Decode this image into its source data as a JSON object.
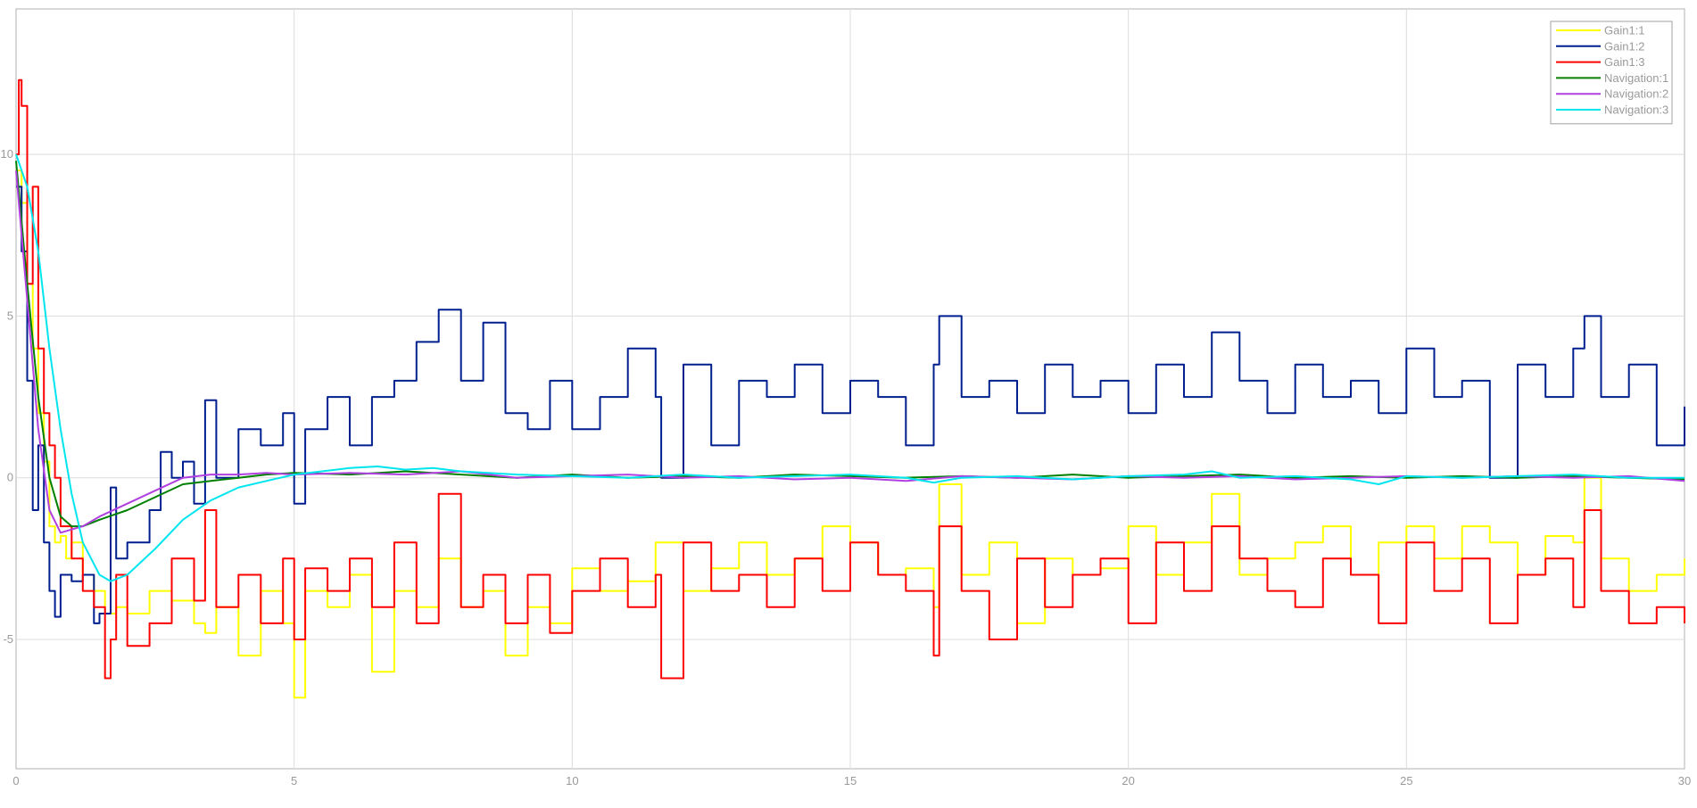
{
  "chart_data": {
    "type": "line",
    "title": "",
    "xlabel": "",
    "ylabel": "",
    "xlim": [
      0,
      30
    ],
    "ylim": [
      -9,
      14.5
    ],
    "grid": true,
    "legend_placement": "top-right",
    "x_ticks": [
      0,
      5,
      10,
      15,
      20,
      25,
      30
    ],
    "y_ticks": [
      -5,
      0,
      5,
      10
    ],
    "x_tick_labels": [
      "0",
      "5",
      "10",
      "15",
      "20",
      "25",
      "30"
    ],
    "y_tick_labels": [
      "-5",
      "0",
      "5",
      "10"
    ],
    "series": [
      {
        "name": "Gain1:1",
        "color": "#ffff00",
        "step": true,
        "x": [
          0,
          0.1,
          0.2,
          0.3,
          0.4,
          0.5,
          0.6,
          0.7,
          0.8,
          0.9,
          1.0,
          1.2,
          1.4,
          1.6,
          1.8,
          2.0,
          2.4,
          2.8,
          3.2,
          3.4,
          3.6,
          4.0,
          4.4,
          4.8,
          5.0,
          5.2,
          5.6,
          6.0,
          6.4,
          6.8,
          7.2,
          7.6,
          8.0,
          8.4,
          8.8,
          9.2,
          9.6,
          10.0,
          10.5,
          11.0,
          11.5,
          12.0,
          12.5,
          13.0,
          13.5,
          14.0,
          14.5,
          15.0,
          15.5,
          16.0,
          16.5,
          16.6,
          17.0,
          17.5,
          18.0,
          18.5,
          19.0,
          19.5,
          20.0,
          20.5,
          21.0,
          21.5,
          22.0,
          22.5,
          23.0,
          23.5,
          24.0,
          24.5,
          25.0,
          25.5,
          26.0,
          26.5,
          27.0,
          27.5,
          28.0,
          28.2,
          28.5,
          29.0,
          29.5,
          30.0
        ],
        "y": [
          9.5,
          8.5,
          6.0,
          4.0,
          2.0,
          0.5,
          -1.5,
          -2.0,
          -1.8,
          -2.5,
          -2.0,
          -3.0,
          -3.5,
          -4.2,
          -4.0,
          -4.2,
          -3.5,
          -3.8,
          -4.5,
          -4.8,
          -4.0,
          -5.5,
          -3.5,
          -4.5,
          -6.8,
          -3.5,
          -4.0,
          -3.0,
          -6.0,
          -3.5,
          -4.0,
          -2.5,
          -4.0,
          -3.5,
          -5.5,
          -4.0,
          -4.5,
          -2.8,
          -3.5,
          -3.2,
          -2.0,
          -3.5,
          -2.8,
          -2.0,
          -3.0,
          -2.5,
          -1.5,
          -2.0,
          -3.0,
          -2.8,
          -4.0,
          -0.2,
          -3.0,
          -2.0,
          -4.5,
          -2.5,
          -3.0,
          -2.8,
          -1.5,
          -3.0,
          -2.0,
          -0.5,
          -3.0,
          -2.5,
          -2.0,
          -1.5,
          -3.0,
          -2.0,
          -1.5,
          -2.5,
          -1.5,
          -2.0,
          -3.0,
          -1.8,
          -2.0,
          0.0,
          -2.5,
          -3.5,
          -3.0,
          -2.5
        ]
      },
      {
        "name": "Gain1:2",
        "color": "#001f8f",
        "step": true,
        "x": [
          0,
          0.1,
          0.2,
          0.3,
          0.4,
          0.5,
          0.6,
          0.7,
          0.8,
          1.0,
          1.2,
          1.4,
          1.5,
          1.7,
          1.8,
          2.0,
          2.4,
          2.6,
          2.8,
          3.0,
          3.2,
          3.4,
          3.6,
          4.0,
          4.4,
          4.8,
          5.0,
          5.2,
          5.6,
          6.0,
          6.4,
          6.8,
          7.2,
          7.6,
          8.0,
          8.4,
          8.8,
          9.2,
          9.6,
          10.0,
          10.5,
          11.0,
          11.5,
          11.6,
          12.0,
          12.5,
          13.0,
          13.5,
          14.0,
          14.5,
          15.0,
          15.5,
          16.0,
          16.5,
          16.6,
          17.0,
          17.5,
          18.0,
          18.5,
          19.0,
          19.5,
          20.0,
          20.5,
          21.0,
          21.5,
          22.0,
          22.5,
          23.0,
          23.5,
          24.0,
          24.5,
          25.0,
          25.5,
          26.0,
          26.5,
          27.0,
          27.5,
          28.0,
          28.2,
          28.5,
          29.0,
          29.5,
          30.0
        ],
        "y": [
          9.0,
          7.0,
          3.0,
          -1.0,
          1.0,
          -2.0,
          -3.5,
          -4.3,
          -3.0,
          -3.2,
          -3.0,
          -4.5,
          -4.2,
          -0.3,
          -2.5,
          -2.0,
          -1.0,
          0.8,
          0.0,
          0.5,
          -0.8,
          2.4,
          0.0,
          1.5,
          1.0,
          2.0,
          -0.8,
          1.5,
          2.5,
          1.0,
          2.5,
          3.0,
          4.2,
          5.2,
          3.0,
          4.8,
          2.0,
          1.5,
          3.0,
          1.5,
          2.5,
          4.0,
          2.5,
          0.0,
          3.5,
          1.0,
          3.0,
          2.5,
          3.5,
          2.0,
          3.0,
          2.5,
          1.0,
          3.5,
          5.0,
          2.5,
          3.0,
          2.0,
          3.5,
          2.5,
          3.0,
          2.0,
          3.5,
          2.5,
          4.5,
          3.0,
          2.0,
          3.5,
          2.5,
          3.0,
          2.0,
          4.0,
          2.5,
          3.0,
          0.0,
          3.5,
          2.5,
          4.0,
          5.0,
          2.5,
          3.5,
          1.0,
          2.2
        ]
      },
      {
        "name": "Gain1:3",
        "color": "#ff0000",
        "step": true,
        "x": [
          0,
          0.05,
          0.1,
          0.2,
          0.3,
          0.4,
          0.5,
          0.6,
          0.7,
          0.8,
          1.0,
          1.2,
          1.4,
          1.6,
          1.7,
          1.8,
          2.0,
          2.4,
          2.8,
          3.2,
          3.4,
          3.6,
          4.0,
          4.4,
          4.8,
          5.0,
          5.2,
          5.6,
          6.0,
          6.4,
          6.8,
          7.2,
          7.6,
          8.0,
          8.4,
          8.8,
          9.2,
          9.6,
          10.0,
          10.5,
          11.0,
          11.5,
          11.6,
          12.0,
          12.5,
          13.0,
          13.5,
          14.0,
          14.5,
          15.0,
          15.5,
          16.0,
          16.5,
          16.6,
          17.0,
          17.5,
          18.0,
          18.5,
          19.0,
          19.5,
          20.0,
          20.5,
          21.0,
          21.5,
          22.0,
          22.5,
          23.0,
          23.5,
          24.0,
          24.5,
          25.0,
          25.5,
          26.0,
          26.5,
          27.0,
          27.5,
          28.0,
          28.2,
          28.5,
          29.0,
          29.5,
          30.0
        ],
        "y": [
          10.0,
          12.3,
          11.5,
          6.0,
          9.0,
          4.0,
          2.0,
          1.0,
          0.0,
          -1.5,
          -2.5,
          -3.5,
          -4.0,
          -6.2,
          -5.0,
          -3.0,
          -5.2,
          -4.5,
          -2.5,
          -3.8,
          -1.0,
          -4.0,
          -3.0,
          -4.5,
          -2.5,
          -5.0,
          -2.8,
          -3.5,
          -2.5,
          -4.0,
          -2.0,
          -4.5,
          -0.5,
          -4.0,
          -3.0,
          -4.5,
          -3.0,
          -4.8,
          -3.5,
          -2.5,
          -4.0,
          -3.0,
          -6.2,
          -2.0,
          -3.5,
          -3.0,
          -4.0,
          -2.5,
          -3.5,
          -2.0,
          -3.0,
          -3.5,
          -5.5,
          -1.5,
          -3.5,
          -5.0,
          -2.5,
          -4.0,
          -3.0,
          -2.5,
          -4.5,
          -2.0,
          -3.5,
          -1.5,
          -2.5,
          -3.5,
          -4.0,
          -2.5,
          -3.0,
          -4.5,
          -2.0,
          -3.5,
          -2.5,
          -4.5,
          -3.0,
          -2.5,
          -4.0,
          -1.0,
          -3.5,
          -4.5,
          -4.0,
          -4.5
        ]
      },
      {
        "name": "Navigation:1",
        "color": "#008000",
        "step": false,
        "x": [
          0,
          0.2,
          0.4,
          0.6,
          0.8,
          1.0,
          1.2,
          1.5,
          2.0,
          2.5,
          3.0,
          3.5,
          4.0,
          4.5,
          5.0,
          6.0,
          7.0,
          8.0,
          9.0,
          10.0,
          11.0,
          12.0,
          13.0,
          14.0,
          15.0,
          16.0,
          17.0,
          18.0,
          19.0,
          20.0,
          21.0,
          22.0,
          23.0,
          24.0,
          25.0,
          26.0,
          27.0,
          28.0,
          29.0,
          30.0
        ],
        "y": [
          9.8,
          6.0,
          2.5,
          0.0,
          -1.2,
          -1.5,
          -1.5,
          -1.3,
          -1.0,
          -0.6,
          -0.2,
          -0.1,
          0.0,
          0.1,
          0.15,
          0.1,
          0.2,
          0.1,
          0.0,
          0.1,
          0.0,
          0.05,
          0.0,
          0.1,
          0.05,
          0.0,
          0.05,
          0.0,
          0.1,
          0.0,
          0.05,
          0.1,
          0.0,
          0.05,
          0.0,
          0.05,
          0.0,
          0.05,
          0.0,
          -0.05
        ]
      },
      {
        "name": "Navigation:2",
        "color": "#b040e0",
        "step": false,
        "x": [
          0,
          0.2,
          0.4,
          0.6,
          0.8,
          1.0,
          1.2,
          1.5,
          2.0,
          2.5,
          3.0,
          3.5,
          4.0,
          4.5,
          5.0,
          6.0,
          7.0,
          8.0,
          9.0,
          10.0,
          11.0,
          12.0,
          13.0,
          14.0,
          15.0,
          16.0,
          17.0,
          18.0,
          19.0,
          20.0,
          21.0,
          22.0,
          23.0,
          24.0,
          25.0,
          26.0,
          27.0,
          28.0,
          29.0,
          30.0
        ],
        "y": [
          9.5,
          5.5,
          1.5,
          -1.0,
          -1.7,
          -1.6,
          -1.5,
          -1.2,
          -0.8,
          -0.4,
          0.0,
          0.1,
          0.1,
          0.15,
          0.1,
          0.15,
          0.1,
          0.2,
          0.0,
          0.05,
          0.1,
          0.0,
          0.05,
          -0.05,
          0.0,
          -0.1,
          0.05,
          0.0,
          -0.05,
          0.05,
          0.0,
          0.05,
          -0.05,
          0.0,
          0.05,
          0.0,
          0.05,
          0.0,
          0.05,
          -0.1
        ]
      },
      {
        "name": "Navigation:3",
        "color": "#00e5ee",
        "step": false,
        "x": [
          0,
          0.2,
          0.4,
          0.6,
          0.8,
          1.0,
          1.2,
          1.5,
          1.7,
          2.0,
          2.5,
          3.0,
          3.5,
          4.0,
          4.5,
          5.0,
          5.5,
          6.0,
          6.5,
          7.0,
          7.5,
          8.0,
          9.0,
          10.0,
          11.0,
          12.0,
          13.0,
          14.0,
          15.0,
          16.0,
          16.5,
          17.0,
          18.0,
          19.0,
          20.0,
          21.0,
          21.5,
          22.0,
          23.0,
          24.0,
          24.5,
          25.0,
          26.0,
          27.0,
          28.0,
          29.0,
          30.0
        ],
        "y": [
          10.0,
          9.0,
          7.0,
          4.0,
          1.5,
          -0.5,
          -2.0,
          -3.0,
          -3.2,
          -3.0,
          -2.2,
          -1.3,
          -0.7,
          -0.3,
          -0.1,
          0.1,
          0.2,
          0.3,
          0.35,
          0.25,
          0.3,
          0.2,
          0.1,
          0.05,
          0.0,
          0.1,
          0.0,
          0.05,
          0.1,
          0.0,
          -0.15,
          0.0,
          0.05,
          -0.05,
          0.05,
          0.1,
          0.2,
          0.0,
          0.05,
          -0.05,
          -0.2,
          0.05,
          0.0,
          0.05,
          0.1,
          0.0,
          0.0
        ]
      }
    ]
  }
}
